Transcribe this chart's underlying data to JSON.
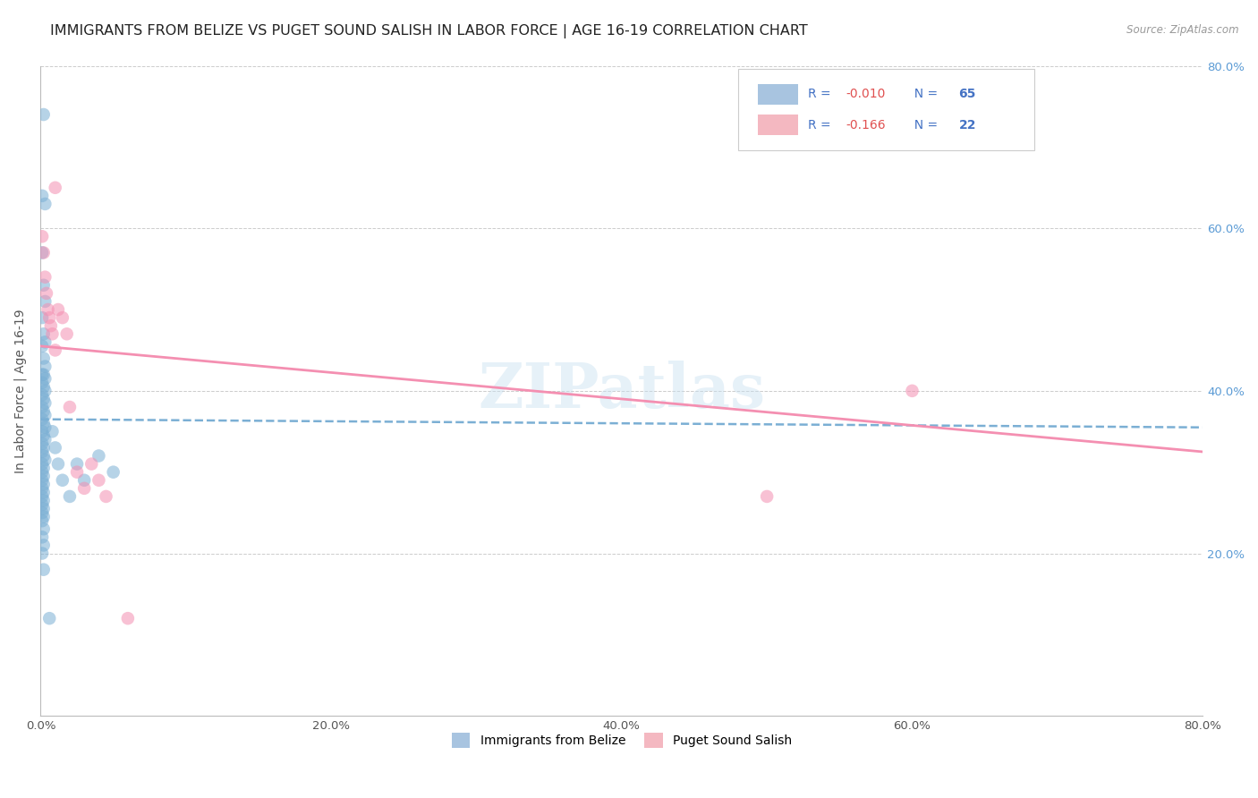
{
  "title": "IMMIGRANTS FROM BELIZE VS PUGET SOUND SALISH IN LABOR FORCE | AGE 16-19 CORRELATION CHART",
  "source": "Source: ZipAtlas.com",
  "ylabel": "In Labor Force | Age 16-19",
  "xlim": [
    0.0,
    0.8
  ],
  "ylim": [
    0.0,
    0.8
  ],
  "xtick_vals": [
    0.0,
    0.2,
    0.4,
    0.6,
    0.8
  ],
  "xtick_labels": [
    "0.0%",
    "20.0%",
    "40.0%",
    "60.0%",
    "80.0%"
  ],
  "ytick_vals": [
    0.2,
    0.4,
    0.6,
    0.8
  ],
  "ytick_labels": [
    "20.0%",
    "40.0%",
    "60.0%",
    "80.0%"
  ],
  "belize_x": [
    0.002,
    0.001,
    0.003,
    0.001,
    0.002,
    0.003,
    0.001,
    0.002,
    0.003,
    0.001,
    0.002,
    0.003,
    0.001,
    0.002,
    0.003,
    0.001,
    0.002,
    0.003,
    0.001,
    0.002,
    0.003,
    0.001,
    0.002,
    0.003,
    0.001,
    0.002,
    0.003,
    0.001,
    0.002,
    0.003,
    0.001,
    0.002,
    0.001,
    0.002,
    0.003,
    0.001,
    0.002,
    0.001,
    0.002,
    0.001,
    0.002,
    0.001,
    0.002,
    0.001,
    0.002,
    0.001,
    0.002,
    0.001,
    0.002,
    0.001,
    0.002,
    0.001,
    0.002,
    0.001,
    0.002,
    0.008,
    0.01,
    0.012,
    0.015,
    0.02,
    0.025,
    0.03,
    0.04,
    0.05,
    0.006
  ],
  "belize_y": [
    0.74,
    0.64,
    0.63,
    0.57,
    0.53,
    0.51,
    0.49,
    0.47,
    0.46,
    0.455,
    0.44,
    0.43,
    0.42,
    0.42,
    0.415,
    0.41,
    0.405,
    0.4,
    0.395,
    0.39,
    0.385,
    0.38,
    0.375,
    0.37,
    0.365,
    0.36,
    0.355,
    0.35,
    0.345,
    0.34,
    0.335,
    0.33,
    0.325,
    0.32,
    0.315,
    0.31,
    0.305,
    0.3,
    0.295,
    0.29,
    0.285,
    0.28,
    0.275,
    0.27,
    0.265,
    0.26,
    0.255,
    0.25,
    0.245,
    0.24,
    0.23,
    0.22,
    0.21,
    0.2,
    0.18,
    0.35,
    0.33,
    0.31,
    0.29,
    0.27,
    0.31,
    0.29,
    0.32,
    0.3,
    0.12
  ],
  "salish_x": [
    0.001,
    0.002,
    0.003,
    0.004,
    0.005,
    0.006,
    0.007,
    0.008,
    0.01,
    0.012,
    0.015,
    0.018,
    0.02,
    0.025,
    0.03,
    0.035,
    0.04,
    0.045,
    0.06,
    0.5,
    0.6,
    0.01
  ],
  "salish_y": [
    0.59,
    0.57,
    0.54,
    0.52,
    0.5,
    0.49,
    0.48,
    0.47,
    0.45,
    0.5,
    0.49,
    0.47,
    0.38,
    0.3,
    0.28,
    0.31,
    0.29,
    0.27,
    0.12,
    0.27,
    0.4,
    0.65
  ],
  "belize_line": {
    "x0": 0.0,
    "x1": 0.8,
    "y0": 0.365,
    "y1": 0.355
  },
  "salish_line": {
    "x0": 0.0,
    "x1": 0.8,
    "y0": 0.455,
    "y1": 0.325
  },
  "belize_color": "#7bafd4",
  "salish_color": "#f48fb1",
  "belize_patch_color": "#a8c4e0",
  "salish_patch_color": "#f4b8c1",
  "scatter_size": 110,
  "scatter_alpha": 0.55,
  "grid_color": "#cccccc",
  "background": "#ffffff",
  "right_tick_color": "#5b9bd5",
  "watermark": "ZIPatlas",
  "title_fontsize": 11.5,
  "tick_fontsize": 9.5,
  "ylabel_fontsize": 10,
  "legend_r1": "R = -0.010   N = 65",
  "legend_r2": "R = -0.166   N = 22",
  "legend_text_color": "#4472c4",
  "legend_r_color": "#e05050",
  "bottom_legend_labels": [
    "Immigrants from Belize",
    "Puget Sound Salish"
  ]
}
